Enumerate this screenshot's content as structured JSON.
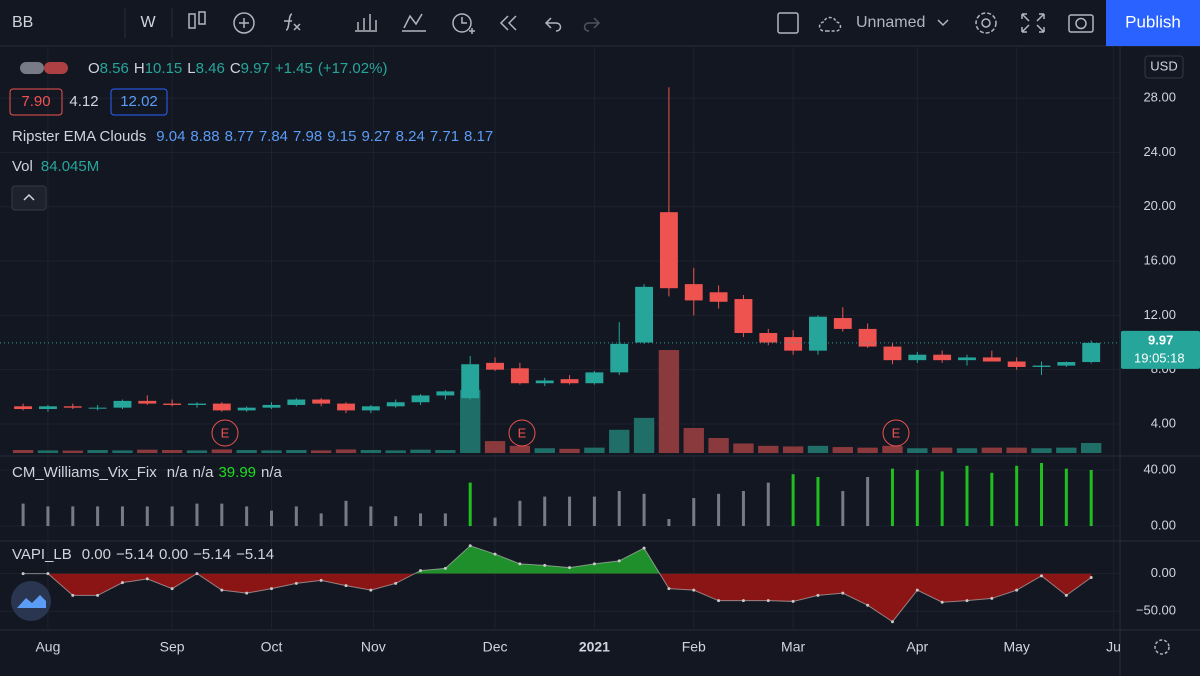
{
  "toolbar": {
    "symbol": "BB",
    "interval": "W",
    "layout_name": "Unnamed",
    "publish": "Publish"
  },
  "legend": {
    "ohlc": [
      {
        "label": "O",
        "value": "8.56"
      },
      {
        "label": "H",
        "value": "10.15"
      },
      {
        "label": "L",
        "value": "8.46"
      },
      {
        "label": "C",
        "value": "9.97"
      }
    ],
    "change": "+1.45",
    "change_pct": "(+17.02%)",
    "badges": [
      "7.90",
      "4.12",
      "12.02"
    ],
    "ema": {
      "name": "Ripster EMA Clouds",
      "values": [
        "9.04",
        "8.88",
        "8.77",
        "7.84",
        "7.98",
        "9.15",
        "9.27",
        "8.24",
        "7.71",
        "8.17"
      ]
    },
    "vol": {
      "name": "Vol",
      "value": "84.045M"
    },
    "vix": {
      "name": "CM_Williams_Vix_Fix",
      "values": [
        "n/a",
        "n/a",
        "39.99",
        "n/a"
      ]
    },
    "vapi": {
      "name": "VAPI_LB",
      "values": [
        "0.00",
        "−5.14",
        "0.00",
        "−5.14",
        "−5.14"
      ]
    }
  },
  "currency": "USD",
  "last_price": {
    "price": "9.97",
    "countdown": "19:05:18"
  },
  "earnings_markers": [
    "E",
    "E",
    "E"
  ],
  "chart_data": [
    {
      "type": "candlestick",
      "up_color": "#26a69a",
      "down_color": "#ef5350",
      "open": [
        5.3,
        5.1,
        5.3,
        5.2,
        5.2,
        5.7,
        5.5,
        5.4,
        5.5,
        5.0,
        5.2,
        5.4,
        5.8,
        5.5,
        5.0,
        5.3,
        5.6,
        6.1,
        5.9,
        8.5,
        8.1,
        7.0,
        7.3,
        7.0,
        7.8,
        10.0,
        19.6,
        14.3,
        13.7,
        13.2,
        10.7,
        10.4,
        9.4,
        11.8,
        11.0,
        9.7,
        8.7,
        9.1,
        8.7,
        8.9,
        8.6,
        8.2,
        8.3,
        8.56
      ],
      "high": [
        5.5,
        5.4,
        5.5,
        5.4,
        5.8,
        6.1,
        5.8,
        5.6,
        5.6,
        5.3,
        5.6,
        5.9,
        5.9,
        5.6,
        5.4,
        5.8,
        6.2,
        6.5,
        9.0,
        8.9,
        8.5,
        7.4,
        7.6,
        7.9,
        11.5,
        14.3,
        28.8,
        15.5,
        14.2,
        13.5,
        11.0,
        10.9,
        12.0,
        12.6,
        11.4,
        10.0,
        9.3,
        9.4,
        9.1,
        9.4,
        8.9,
        8.6,
        8.6,
        10.15
      ],
      "low": [
        5.0,
        4.9,
        5.1,
        5.0,
        5.1,
        5.4,
        5.3,
        5.2,
        4.9,
        4.9,
        5.1,
        5.3,
        5.3,
        4.8,
        4.8,
        5.2,
        5.4,
        5.8,
        5.8,
        7.9,
        6.9,
        6.8,
        6.9,
        6.9,
        7.6,
        9.9,
        13.4,
        12.0,
        12.5,
        10.4,
        9.8,
        9.1,
        9.1,
        10.8,
        9.6,
        8.4,
        8.5,
        8.5,
        8.3,
        8.6,
        8.0,
        7.6,
        8.2,
        8.46
      ],
      "close": [
        5.1,
        5.3,
        5.2,
        5.2,
        5.7,
        5.5,
        5.4,
        5.5,
        5.0,
        5.2,
        5.4,
        5.8,
        5.5,
        5.0,
        5.3,
        5.6,
        6.1,
        6.4,
        8.4,
        8.0,
        7.0,
        7.2,
        7.0,
        7.8,
        9.9,
        14.1,
        14.0,
        13.1,
        13.0,
        10.7,
        10.0,
        9.4,
        11.9,
        11.0,
        9.7,
        8.7,
        9.1,
        8.7,
        8.9,
        8.6,
        8.2,
        8.3,
        8.56,
        9.97
      ],
      "xlim": [
        -0.93,
        44.16
      ],
      "ylim": [
        1.64,
        31.84
      ],
      "yticks": [
        {
          "value": 4,
          "label": "4.00"
        },
        {
          "value": 8,
          "label": "8.00"
        },
        {
          "value": 12,
          "label": "12.00"
        },
        {
          "value": 16,
          "label": "16.00"
        },
        {
          "value": 20,
          "label": "20.00"
        },
        {
          "value": 24,
          "label": "24.00"
        },
        {
          "value": 28,
          "label": "28.00"
        }
      ],
      "xticks": [
        {
          "value": 1,
          "label": "Aug"
        },
        {
          "value": 6,
          "label": "Sep"
        },
        {
          "value": 10,
          "label": "Oct"
        },
        {
          "value": 14.1,
          "label": "Nov"
        },
        {
          "value": 19,
          "label": "Dec"
        },
        {
          "value": 23,
          "label": "2021"
        },
        {
          "value": 27,
          "label": "Feb"
        },
        {
          "value": 31,
          "label": "Mar"
        },
        {
          "value": 36,
          "label": "Apr"
        },
        {
          "value": 40,
          "label": "May"
        },
        {
          "value": 43.9,
          "label": "Ju"
        }
      ]
    },
    {
      "type": "bar",
      "name": "Vol",
      "ylim": [
        0,
        3419
      ],
      "values": [
        25,
        22,
        20,
        25,
        22,
        28,
        25,
        22,
        30,
        25,
        22,
        25,
        22,
        30,
        25,
        22,
        28,
        25,
        530,
        100,
        60,
        40,
        35,
        45,
        195,
        295,
        865,
        210,
        126,
        80,
        60,
        55,
        60,
        50,
        45,
        60,
        40,
        45,
        40,
        45,
        45,
        40,
        45,
        84.045
      ],
      "up_color": "#1f6e68",
      "down_color": "#8a3a3c"
    },
    {
      "type": "bar",
      "name": "CM_Williams_Vix_Fix",
      "ylim": [
        -10.7,
        50
      ],
      "yticks": [
        {
          "value": 0,
          "label": "0.00"
        },
        {
          "value": 40,
          "label": "40.00"
        }
      ],
      "values": [
        16,
        14,
        14,
        14,
        14,
        14,
        14,
        16,
        16,
        14,
        11,
        14,
        9,
        18,
        14,
        7,
        9,
        9,
        31,
        6,
        18,
        21,
        21,
        21,
        25,
        23,
        5,
        20,
        23,
        25,
        31,
        37,
        35,
        25,
        35,
        41,
        40,
        39,
        43,
        38,
        43,
        45,
        41,
        39.99
      ],
      "colors": [
        "#787b86",
        "#787b86",
        "#787b86",
        "#787b86",
        "#787b86",
        "#787b86",
        "#787b86",
        "#787b86",
        "#787b86",
        "#787b86",
        "#787b86",
        "#787b86",
        "#787b86",
        "#787b86",
        "#787b86",
        "#787b86",
        "#787b86",
        "#787b86",
        "#1fbf1f",
        "#787b86",
        "#787b86",
        "#787b86",
        "#787b86",
        "#787b86",
        "#787b86",
        "#787b86",
        "#787b86",
        "#787b86",
        "#787b86",
        "#787b86",
        "#787b86",
        "#1fbf1f",
        "#1fbf1f",
        "#787b86",
        "#787b86",
        "#1fbf1f",
        "#1fbf1f",
        "#1fbf1f",
        "#1fbf1f",
        "#1fbf1f",
        "#1fbf1f",
        "#1fbf1f",
        "#1fbf1f",
        "#1fbf1f"
      ]
    },
    {
      "type": "area",
      "name": "VAPI_LB",
      "ylim": [
        -75,
        43.4
      ],
      "yticks": [
        {
          "value": 0,
          "label": "0.00"
        },
        {
          "value": -50,
          "label": "−50.00"
        }
      ],
      "values": [
        0,
        0,
        -29,
        -29,
        -12,
        -7,
        -20,
        0,
        -22,
        -26,
        -20,
        -13,
        -9,
        -16,
        -22,
        -13,
        4,
        7,
        37,
        26,
        13,
        11,
        8,
        13,
        17,
        34,
        -20,
        -22,
        -36,
        -36,
        -36,
        -37,
        -29,
        -26,
        -42,
        -64,
        -22,
        -38,
        -36,
        -33,
        -22,
        -3,
        -29,
        -5.14
      ],
      "pos_color": "#1e8f2a",
      "neg_color": "#8b1414",
      "line_color": "#c8c8c8"
    }
  ]
}
